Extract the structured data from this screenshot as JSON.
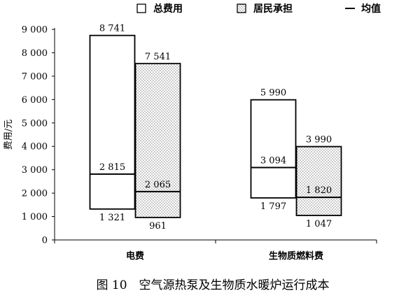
{
  "caption": "图 10　空气源热泵及生物质水暖炉运行成本",
  "chart_data": {
    "type": "bar",
    "subtype": "floating-range-with-mean",
    "title": "",
    "ylabel": "费用/元",
    "xlabel": "",
    "ylim": [
      0,
      9000
    ],
    "y_ticks": [
      0,
      1000,
      2000,
      3000,
      4000,
      5000,
      6000,
      7000,
      8000,
      9000
    ],
    "y_tick_labels": [
      "0",
      "1 000",
      "2 000",
      "3 000",
      "4 000",
      "5 000",
      "6 000",
      "7 000",
      "8 000",
      "9 000"
    ],
    "categories": [
      "电费",
      "生物质燃料费"
    ],
    "legend_position": "top",
    "legend": [
      {
        "label": "总费用",
        "swatch": "box-empty"
      },
      {
        "label": "居民承担",
        "swatch": "box-dotted"
      },
      {
        "label": "均值",
        "swatch": "line"
      }
    ],
    "series": [
      {
        "name": "总费用",
        "pattern": "none",
        "low": [
          1321,
          1797
        ],
        "high": [
          8741,
          5990
        ],
        "mean": [
          2815,
          3094
        ],
        "low_labels": [
          "1 321",
          "1 797"
        ],
        "high_labels": [
          "8 741",
          "5 990"
        ],
        "mean_labels": [
          "2 815",
          "3 094"
        ]
      },
      {
        "name": "居民承担",
        "pattern": "dots",
        "low": [
          961,
          1047
        ],
        "high": [
          7541,
          3990
        ],
        "mean": [
          2065,
          1820
        ],
        "low_labels": [
          "961",
          "1 047"
        ],
        "high_labels": [
          "7 541",
          "3 990"
        ],
        "mean_labels": [
          "2 065",
          "1 820"
        ]
      }
    ]
  }
}
